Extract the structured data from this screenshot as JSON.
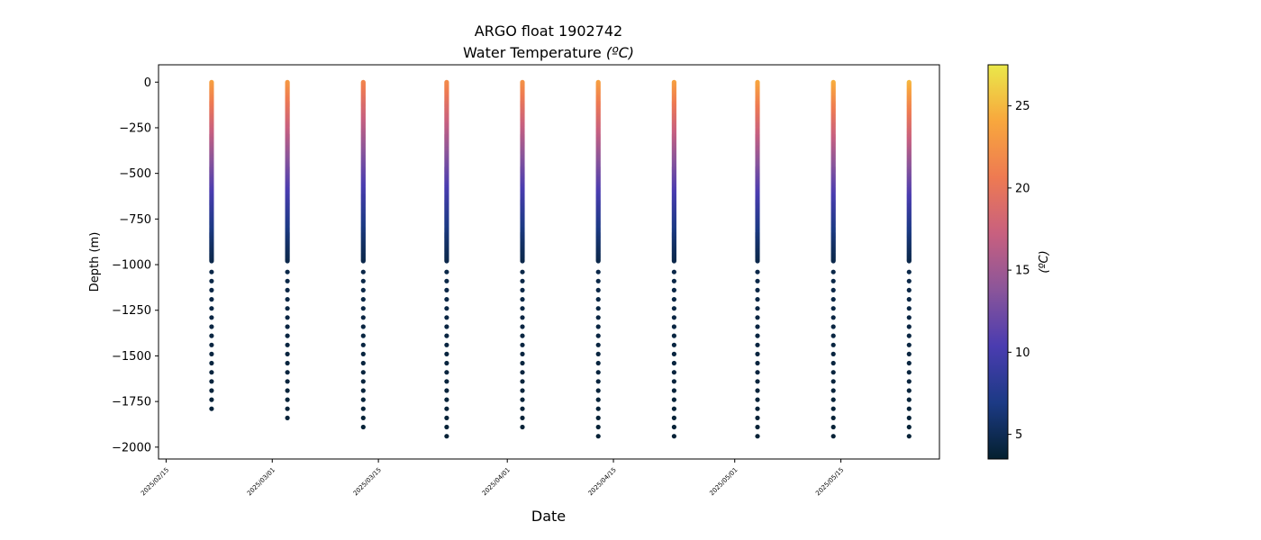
{
  "chart_data": {
    "type": "scatter",
    "title": "ARGO float 1902742",
    "subtitle": "Water Temperature",
    "subtitle_unit": "(ºC)",
    "xlabel": "Date",
    "ylabel": "Depth (m)",
    "colorbar_label": "(ºC)",
    "colormap": "thermal",
    "colormap_stops": [
      "#04202f",
      "#1c3a85",
      "#4a3cb0",
      "#8a559a",
      "#c8607f",
      "#ee7a52",
      "#f8a73d",
      "#eae84a"
    ],
    "clim": [
      3.5,
      27.5
    ],
    "colorbar_ticks": [
      5,
      10,
      15,
      20,
      25
    ],
    "xlim": [
      "2025-02-14",
      "2025-05-28"
    ],
    "ylim": [
      -2065,
      95
    ],
    "xtick_values": [
      "2025-02-15",
      "2025-03-01",
      "2025-03-15",
      "2025-04-01",
      "2025-04-15",
      "2025-05-01",
      "2025-05-15"
    ],
    "xtick_labels": [
      "2025/02/15",
      "2025/03/01",
      "2025/03/15",
      "2025/04/01",
      "2025/04/15",
      "2025/05/01",
      "2025/05/15"
    ],
    "ytick_values": [
      0,
      -250,
      -500,
      -750,
      -1000,
      -1250,
      -1500,
      -1750,
      -2000
    ],
    "ytick_labels": [
      "0",
      "−250",
      "−500",
      "−750",
      "−1000",
      "−1250",
      "−1500",
      "−1750",
      "−2000"
    ],
    "grid": false,
    "profiles": [
      {
        "date": "2025-02-21",
        "surface_temp": 23.5,
        "max_depth": -1820
      },
      {
        "date": "2025-03-03",
        "surface_temp": 23.0,
        "max_depth": -1870
      },
      {
        "date": "2025-03-13",
        "surface_temp": 21.5,
        "max_depth": -1920
      },
      {
        "date": "2025-03-24",
        "surface_temp": 22.0,
        "max_depth": -1970
      },
      {
        "date": "2025-04-03",
        "surface_temp": 22.5,
        "max_depth": -1920
      },
      {
        "date": "2025-04-13",
        "surface_temp": 23.5,
        "max_depth": -1970
      },
      {
        "date": "2025-04-23",
        "surface_temp": 23.5,
        "max_depth": -1970
      },
      {
        "date": "2025-05-04",
        "surface_temp": 24.0,
        "max_depth": -1970
      },
      {
        "date": "2025-05-14",
        "surface_temp": 24.5,
        "max_depth": -1970
      },
      {
        "date": "2025-05-24",
        "surface_temp": 25.0,
        "max_depth": -1970
      }
    ]
  }
}
